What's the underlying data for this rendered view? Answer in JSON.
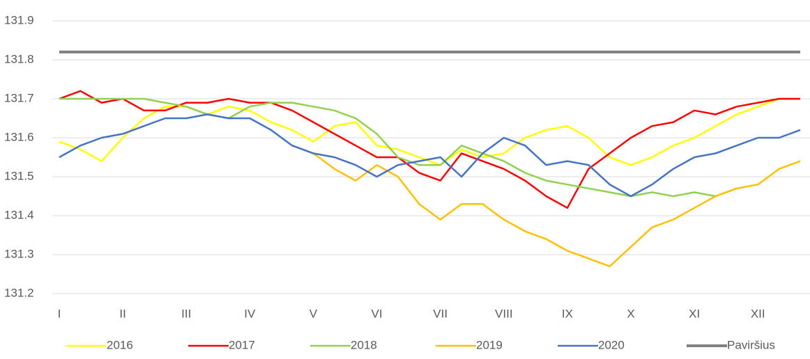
{
  "chart_data": {
    "type": "line",
    "categories": [
      "I",
      null,
      null,
      "II",
      null,
      null,
      "III",
      null,
      null,
      "IV",
      null,
      null,
      "V",
      null,
      null,
      "VI",
      null,
      null,
      "VII",
      null,
      null,
      "VIII",
      null,
      null,
      "IX",
      null,
      null,
      "X",
      null,
      null,
      "XI",
      null,
      null,
      "XII",
      null,
      null
    ],
    "series": [
      {
        "name": "2016",
        "color": "#ffff00",
        "values": [
          131.59,
          131.57,
          131.54,
          131.6,
          131.65,
          131.68,
          131.68,
          131.66,
          131.68,
          131.67,
          131.64,
          131.62,
          131.59,
          131.63,
          131.64,
          131.58,
          131.57,
          131.55,
          131.53,
          131.57,
          131.55,
          131.56,
          131.6,
          131.62,
          131.63,
          131.6,
          131.55,
          131.53,
          131.55,
          131.58,
          131.6,
          131.63,
          131.66,
          131.68,
          131.7,
          131.7
        ]
      },
      {
        "name": "2017",
        "color": "#ff0000",
        "values": [
          131.7,
          131.72,
          131.69,
          131.7,
          131.67,
          131.67,
          131.69,
          131.69,
          131.7,
          131.69,
          131.69,
          131.67,
          131.64,
          131.61,
          131.58,
          131.55,
          131.55,
          131.51,
          131.49,
          131.56,
          131.54,
          131.52,
          131.49,
          131.45,
          131.42,
          131.52,
          131.56,
          131.6,
          131.63,
          131.64,
          131.67,
          131.66,
          131.68,
          131.69,
          131.7,
          131.7
        ]
      },
      {
        "name": "2018",
        "color": "#92d050",
        "values": [
          131.7,
          131.7,
          131.7,
          131.7,
          131.7,
          131.69,
          131.68,
          131.66,
          131.65,
          131.68,
          131.69,
          131.69,
          131.68,
          131.67,
          131.65,
          131.61,
          131.55,
          131.53,
          131.53,
          131.58,
          131.56,
          131.54,
          131.51,
          131.49,
          131.48,
          131.47,
          131.46,
          131.45,
          131.46,
          131.45,
          131.46,
          131.45,
          131.47,
          null,
          null,
          null
        ]
      },
      {
        "name": "2019",
        "color": "#ffc000",
        "values": [
          null,
          null,
          null,
          null,
          null,
          null,
          null,
          null,
          null,
          null,
          null,
          131.58,
          131.56,
          131.52,
          131.49,
          131.53,
          131.5,
          131.43,
          131.39,
          131.43,
          131.43,
          131.39,
          131.36,
          131.34,
          131.31,
          131.29,
          131.27,
          131.32,
          131.37,
          131.39,
          131.42,
          131.45,
          131.47,
          131.48,
          131.52,
          131.54
        ]
      },
      {
        "name": "2020",
        "color": "#4472c4",
        "values": [
          131.55,
          131.58,
          131.6,
          131.61,
          131.63,
          131.65,
          131.65,
          131.66,
          131.65,
          131.65,
          131.62,
          131.58,
          131.56,
          131.55,
          131.53,
          131.5,
          131.53,
          131.54,
          131.55,
          131.5,
          131.56,
          131.6,
          131.58,
          131.53,
          131.54,
          131.53,
          131.48,
          131.45,
          131.48,
          131.52,
          131.55,
          131.56,
          131.58,
          131.6,
          131.6,
          131.62
        ]
      },
      {
        "name": "Paviršius",
        "color": "#7f7f7f",
        "values": [
          131.82,
          131.82,
          131.82,
          131.82,
          131.82,
          131.82,
          131.82,
          131.82,
          131.82,
          131.82,
          131.82,
          131.82,
          131.82,
          131.82,
          131.82,
          131.82,
          131.82,
          131.82,
          131.82,
          131.82,
          131.82,
          131.82,
          131.82,
          131.82,
          131.82,
          131.82,
          131.82,
          131.82,
          131.82,
          131.82,
          131.82,
          131.82,
          131.82,
          131.82,
          131.82,
          131.82
        ]
      }
    ],
    "ylim": [
      131.2,
      131.9
    ],
    "yticks": [
      131.2,
      131.3,
      131.4,
      131.5,
      131.6,
      131.7,
      131.8,
      131.9
    ],
    "grid": true,
    "legend": "bottom"
  }
}
